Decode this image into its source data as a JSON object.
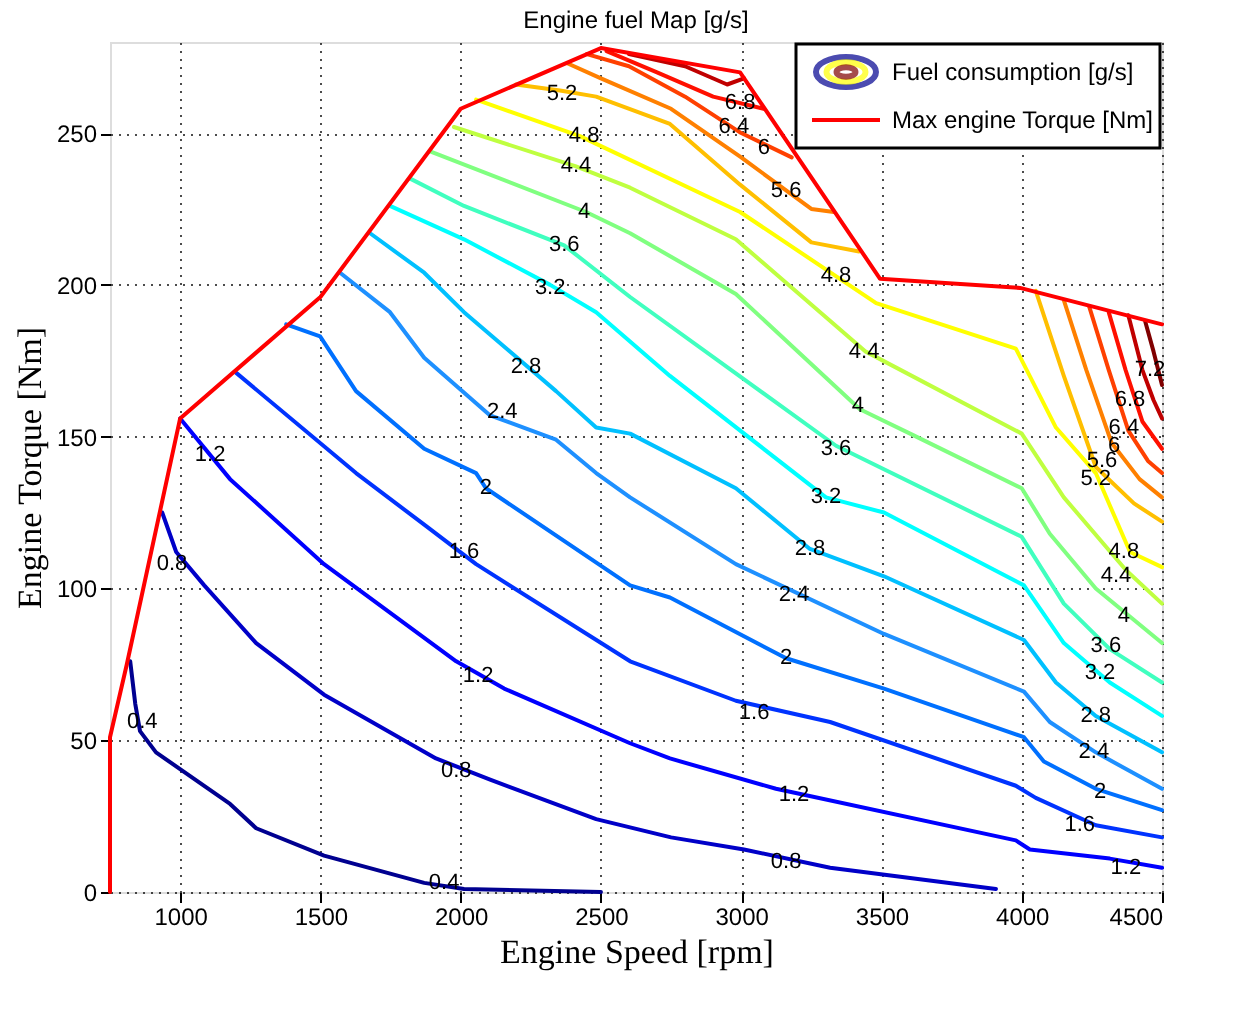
{
  "chart_data": {
    "type": "line",
    "title": "Engine fuel Map [g/s]",
    "xlabel": "Engine Speed [rpm]",
    "ylabel": "Engine Torque [Nm]",
    "xlim": [
      750,
      4500
    ],
    "ylim": [
      0,
      280
    ],
    "xticks": [
      1000,
      1500,
      2000,
      2500,
      3000,
      3500,
      4000,
      4500
    ],
    "yticks": [
      0,
      50,
      100,
      150,
      200,
      250
    ],
    "grid": true,
    "legend": "top right",
    "marker": "none",
    "line_style": "solid",
    "series": [
      {
        "name": "Fuel consumption [g/s]",
        "color": "#000090",
        "x": [
          822,
          840,
          857,
          914,
          1178,
          1271,
          1513,
          1870,
          2012,
          2500
        ],
        "values": [
          76,
          62,
          53,
          46,
          29,
          21,
          12,
          3,
          1,
          0
        ]
      },
      {
        "color": "#0000c8",
        "x": [
          936,
          986,
          1086,
          1271,
          1513,
          1912,
          2105,
          2483,
          2750,
          3010,
          3317,
          3908
        ],
        "values": [
          125,
          112,
          101,
          82,
          65,
          44,
          37,
          24,
          18,
          14,
          8,
          1
        ]
      },
      {
        "color": "#0000ff",
        "x": [
          1000,
          1178,
          1513,
          1984,
          2155,
          2604,
          2746,
          3124,
          3979,
          4029,
          4314,
          4500
        ],
        "values": [
          156,
          136,
          108,
          76,
          67,
          49,
          44,
          34,
          17,
          14,
          11,
          8
        ]
      },
      {
        "color": "#0033ff",
        "x": [
          1200,
          1627,
          1870,
          2055,
          2604,
          2981,
          3317,
          3979,
          4050,
          4264,
          4500
        ],
        "values": [
          171,
          138,
          121,
          108,
          76,
          63,
          56,
          35,
          31,
          22,
          18
        ]
      },
      {
        "color": "#0070ff",
        "x": [
          1378,
          1499,
          1627,
          1870,
          2055,
          2090,
          2604,
          2746,
          3160,
          3509,
          4008,
          4079,
          4264,
          4500
        ],
        "values": [
          187,
          183,
          165,
          146,
          138,
          133,
          101,
          97,
          77,
          67,
          51,
          43,
          34,
          27
        ]
      },
      {
        "color": "#1e90ff",
        "x": [
          1570,
          1748,
          1870,
          2105,
          2340,
          2483,
          2604,
          2981,
          3509,
          4008,
          4100,
          4264,
          4500
        ],
        "values": [
          204,
          191,
          176,
          157,
          149,
          138,
          130,
          108,
          85,
          66,
          56,
          46,
          34
        ]
      },
      {
        "color": "#00c0ff",
        "x": [
          1677,
          1870,
          2012,
          2340,
          2483,
          2604,
          2981,
          3245,
          3509,
          4008,
          4122,
          4264,
          4500
        ],
        "values": [
          217,
          204,
          191,
          165,
          153,
          151,
          133,
          113,
          104,
          83,
          69,
          58,
          46
        ]
      },
      {
        "color": "#00ffff",
        "x": [
          1748,
          2012,
          2319,
          2483,
          2746,
          3302,
          3509,
          4008,
          4150,
          4314,
          4500
        ],
        "values": [
          226,
          215,
          200,
          191,
          170,
          130,
          125,
          101,
          82,
          69,
          58
        ]
      },
      {
        "color": "#40ffbf",
        "x": [
          1820,
          2012,
          2369,
          2604,
          3338,
          4000,
          4150,
          4314,
          4500
        ],
        "values": [
          235,
          226,
          213,
          196,
          147,
          117,
          95,
          80,
          69
        ]
      },
      {
        "color": "#80ff80",
        "x": [
          1891,
          2447,
          2604,
          2981,
          3423,
          3602,
          4000,
          4100,
          4264,
          4500
        ],
        "values": [
          244,
          224,
          217,
          197,
          159,
          151,
          133,
          118,
          100,
          82
        ]
      },
      {
        "color": "#bfff40",
        "x": [
          1976,
          2411,
          2604,
          2981,
          3444,
          4000,
          4150,
          4372,
          4500
        ],
        "values": [
          252,
          239,
          232,
          215,
          178,
          151,
          130,
          106,
          95
        ]
      },
      {
        "color": "#ffff00",
        "x": [
          2055,
          2425,
          2996,
          3481,
          3979,
          4122,
          4264,
          4386,
          4500
        ],
        "values": [
          261,
          249,
          224,
          194,
          179,
          153,
          138,
          112,
          107
        ]
      },
      {
        "color": "#ffbf00",
        "x": [
          2197,
          2354,
          2483,
          2746,
          2996,
          3250,
          3420
        ],
        "values": [
          266,
          264,
          262,
          253,
          233,
          214,
          211
        ]
      },
      {
        "color": "#ffbf00",
        "x": [
          4050,
          4150,
          4264,
          4400,
          4500
        ],
        "values": [
          198,
          170,
          140,
          128,
          122
        ]
      },
      {
        "color": "#ff8000",
        "x": [
          2380,
          2500,
          2750,
          3000,
          3250,
          3330
        ],
        "values": [
          273,
          268,
          258,
          242,
          225,
          224
        ]
      },
      {
        "color": "#ff8000",
        "x": [
          4150,
          4230,
          4320,
          4420,
          4500
        ],
        "values": [
          195,
          172,
          148,
          136,
          130
        ]
      },
      {
        "color": "#ff4000",
        "x": [
          2450,
          2600,
          2800,
          3000,
          3180
        ],
        "values": [
          276,
          272,
          262,
          250,
          242
        ]
      },
      {
        "color": "#ff4000",
        "x": [
          4240,
          4310,
          4380,
          4450,
          4500
        ],
        "values": [
          193,
          172,
          152,
          142,
          138
        ]
      },
      {
        "color": "#ff1000",
        "x": [
          2520,
          2700,
          2900,
          3080
        ],
        "values": [
          277,
          270,
          262,
          258
        ]
      },
      {
        "color": "#ff1000",
        "x": [
          4310,
          4370,
          4430,
          4500
        ],
        "values": [
          191,
          172,
          155,
          146
        ]
      },
      {
        "color": "#c00000",
        "x": [
          2600,
          2800,
          2950,
          3010
        ],
        "values": [
          276,
          272,
          266,
          268
        ]
      },
      {
        "color": "#c00000",
        "x": [
          4380,
          4430,
          4470,
          4500
        ],
        "values": [
          190,
          172,
          162,
          156
        ]
      },
      {
        "color": "#800000",
        "x": [
          4440,
          4470,
          4500
        ],
        "values": [
          188,
          178,
          167
        ]
      },
      {
        "name": "Max engine Torque [Nm]",
        "color": "#ff0000",
        "x": [
          750,
          750,
          810,
          1000,
          1500,
          2000,
          2500,
          2996,
          3495,
          3994,
          4500
        ],
        "values": [
          0,
          51,
          75,
          156,
          196,
          258,
          278,
          270,
          202,
          199,
          187
        ]
      }
    ],
    "annotations": [
      {
        "text": "0.4",
        "x": 865,
        "y": 56
      },
      {
        "text": "0.4",
        "x": 1941,
        "y": 3
      },
      {
        "text": "0.8",
        "x": 971,
        "y": 108
      },
      {
        "text": "0.8",
        "x": 1984,
        "y": 40
      },
      {
        "text": "0.8",
        "x": 3160,
        "y": 10
      },
      {
        "text": "1.2",
        "x": 1107,
        "y": 144
      },
      {
        "text": "1.2",
        "x": 2062,
        "y": 71
      },
      {
        "text": "1.2",
        "x": 3188,
        "y": 32
      },
      {
        "text": "1.2",
        "x": 4371,
        "y": 8
      },
      {
        "text": "1.6",
        "x": 2012,
        "y": 112
      },
      {
        "text": "1.6",
        "x": 3046,
        "y": 59
      },
      {
        "text": "1.6",
        "x": 4207,
        "y": 22
      },
      {
        "text": "2",
        "x": 2090,
        "y": 133
      },
      {
        "text": "2",
        "x": 3160,
        "y": 77
      },
      {
        "text": "2",
        "x": 4279,
        "y": 33
      },
      {
        "text": "2.4",
        "x": 2148,
        "y": 158
      },
      {
        "text": "2.4",
        "x": 3188,
        "y": 98
      },
      {
        "text": "2.4",
        "x": 4257,
        "y": 46
      },
      {
        "text": "2.8",
        "x": 2233,
        "y": 173
      },
      {
        "text": "2.8",
        "x": 3245,
        "y": 113
      },
      {
        "text": "2.8",
        "x": 4264,
        "y": 58
      },
      {
        "text": "3.2",
        "x": 2319,
        "y": 199
      },
      {
        "text": "3.2",
        "x": 3302,
        "y": 130
      },
      {
        "text": "3.2",
        "x": 4279,
        "y": 72
      },
      {
        "text": "3.6",
        "x": 2369,
        "y": 213
      },
      {
        "text": "3.6",
        "x": 3338,
        "y": 146
      },
      {
        "text": "3.6",
        "x": 4300,
        "y": 81
      },
      {
        "text": "4",
        "x": 2440,
        "y": 224
      },
      {
        "text": "4",
        "x": 3416,
        "y": 160
      },
      {
        "text": "4",
        "x": 4364,
        "y": 91
      },
      {
        "text": "4.4",
        "x": 2411,
        "y": 239
      },
      {
        "text": "4.4",
        "x": 3438,
        "y": 178
      },
      {
        "text": "4.4",
        "x": 4336,
        "y": 104
      },
      {
        "text": "4.8",
        "x": 2440,
        "y": 249
      },
      {
        "text": "4.8",
        "x": 3338,
        "y": 203
      },
      {
        "text": "4.8",
        "x": 4364,
        "y": 112
      },
      {
        "text": "5.2",
        "x": 2361,
        "y": 263
      },
      {
        "text": "5.2",
        "x": 4264,
        "y": 136
      },
      {
        "text": "5.6",
        "x": 3160,
        "y": 231
      },
      {
        "text": "5.6",
        "x": 4286,
        "y": 142
      },
      {
        "text": "6",
        "x": 3081,
        "y": 245
      },
      {
        "text": "6",
        "x": 4329,
        "y": 147
      },
      {
        "text": "6.4",
        "x": 2974,
        "y": 252
      },
      {
        "text": "6.4",
        "x": 4364,
        "y": 153
      },
      {
        "text": "6.8",
        "x": 2996,
        "y": 260
      },
      {
        "text": "6.8",
        "x": 4386,
        "y": 162
      },
      {
        "text": "7.2",
        "x": 4457,
        "y": 172
      }
    ]
  }
}
